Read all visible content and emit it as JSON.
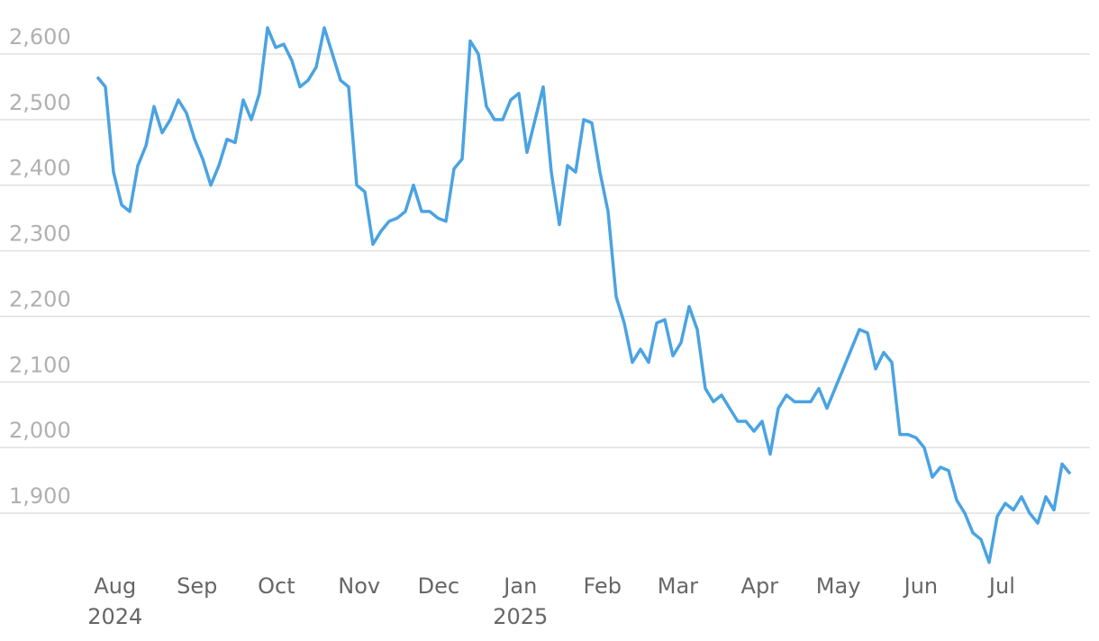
{
  "chart_data": {
    "type": "line",
    "series": [
      {
        "color": "#4aa3e2",
        "values": [
          2565,
          2550,
          2420,
          2370,
          2360,
          2430,
          2460,
          2520,
          2480,
          2500,
          2530,
          2510,
          2470,
          2440,
          2400,
          2430,
          2470,
          2465,
          2530,
          2500,
          2540,
          2640,
          2610,
          2615,
          2590,
          2550,
          2560,
          2580,
          2640,
          2600,
          2560,
          2550,
          2400,
          2390,
          2310,
          2330,
          2345,
          2350,
          2360,
          2400,
          2360,
          2360,
          2350,
          2345,
          2425,
          2440,
          2620,
          2600,
          2520,
          2500,
          2500,
          2530,
          2540,
          2450,
          2500,
          2550,
          2420,
          2340,
          2430,
          2420,
          2500,
          2495,
          2420,
          2360,
          2230,
          2190,
          2130,
          2150,
          2130,
          2190,
          2195,
          2140,
          2160,
          2215,
          2180,
          2090,
          2070,
          2080,
          2060,
          2040,
          2040,
          2025,
          2040,
          1990,
          2060,
          2080,
          2070,
          2070,
          2070,
          2090,
          2060,
          2090,
          2120,
          2150,
          2180,
          2175,
          2120,
          2145,
          2130,
          2020,
          2020,
          2015,
          2000,
          1955,
          1970,
          1965,
          1920,
          1900,
          1870,
          1860,
          1825,
          1895,
          1915,
          1905,
          1925,
          1900,
          1885,
          1925,
          1905,
          1975,
          1960
        ]
      }
    ],
    "xlim": [
      0,
      120
    ],
    "xticks": [
      {
        "value": 2.2,
        "label": "Aug"
      },
      {
        "value": 12.3,
        "label": "Sep"
      },
      {
        "value": 22.1,
        "label": "Oct"
      },
      {
        "value": 32.3,
        "label": "Nov"
      },
      {
        "value": 42.1,
        "label": "Dec"
      },
      {
        "value": 52.2,
        "label": "Jan"
      },
      {
        "value": 62.3,
        "label": "Feb"
      },
      {
        "value": 71.6,
        "label": "Mar"
      },
      {
        "value": 81.7,
        "label": "Apr"
      },
      {
        "value": 91.4,
        "label": "May"
      },
      {
        "value": 101.6,
        "label": "Jun"
      },
      {
        "value": 111.6,
        "label": "Jul"
      }
    ],
    "year_labels": [
      {
        "value": 2.2,
        "label": "2024"
      },
      {
        "value": 52.2,
        "label": "2025"
      }
    ],
    "ylim": [
      1800,
      2650
    ],
    "yticks": [
      {
        "value": 1900,
        "label": "1,900"
      },
      {
        "value": 2000,
        "label": "2,000"
      },
      {
        "value": 2100,
        "label": "2,100"
      },
      {
        "value": 2200,
        "label": "2,200"
      },
      {
        "value": 2300,
        "label": "2,300"
      },
      {
        "value": 2400,
        "label": "2,400"
      },
      {
        "value": 2500,
        "label": "2,500"
      },
      {
        "value": 2600,
        "label": "2,600"
      }
    ],
    "grid": true
  }
}
